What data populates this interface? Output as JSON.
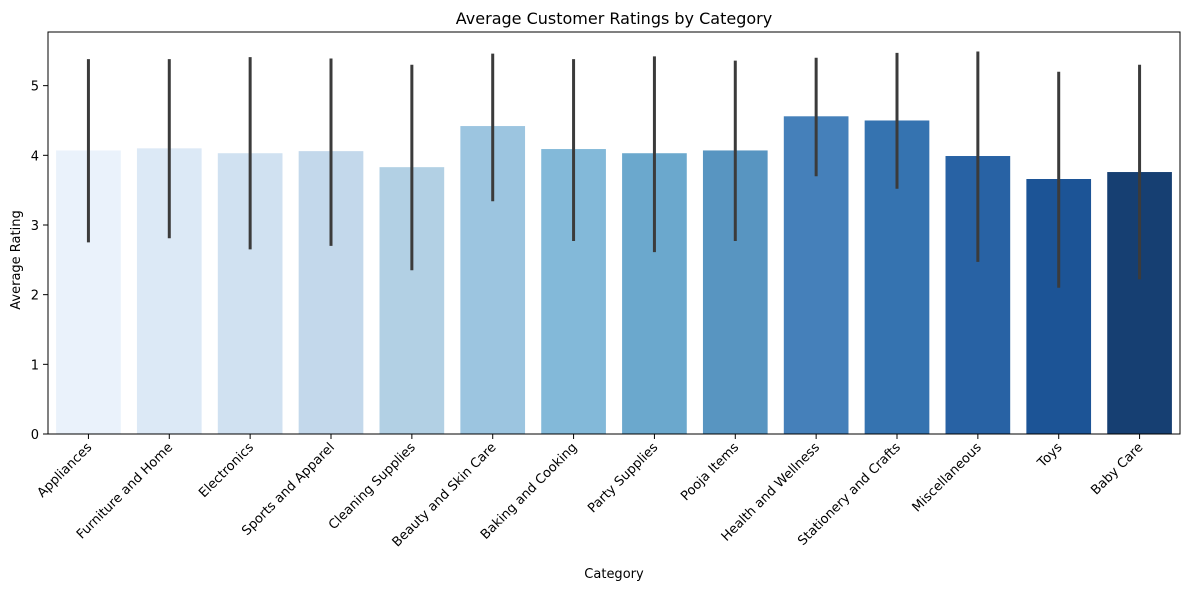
{
  "chart_data": {
    "type": "bar",
    "title": "Average Customer Ratings by Category",
    "xlabel": "Category",
    "ylabel": "Average Rating",
    "ylim": [
      0,
      5.77
    ],
    "yticks": [
      0,
      1,
      2,
      3,
      4,
      5
    ],
    "grid": false,
    "legend": "none",
    "categories": [
      "Appliances",
      "Furniture and Home",
      "Electronics",
      "Sports and Apparel",
      "Cleaning Supplies",
      "Beauty and Skin Care",
      "Baking and Cooking",
      "Party Supplies",
      "Pooja Items",
      "Health and Wellness",
      "Stationery and Crafts",
      "Miscellaneous",
      "Toys",
      "Baby Care"
    ],
    "values": [
      4.07,
      4.1,
      4.03,
      4.06,
      3.83,
      4.42,
      4.09,
      4.03,
      4.07,
      4.56,
      4.5,
      3.99,
      3.66,
      3.76
    ],
    "error_low": [
      2.75,
      2.81,
      2.65,
      2.7,
      2.35,
      3.34,
      2.77,
      2.61,
      2.77,
      3.7,
      3.52,
      2.47,
      2.1,
      2.22
    ],
    "error_high": [
      5.38,
      5.38,
      5.41,
      5.39,
      5.3,
      5.46,
      5.38,
      5.42,
      5.36,
      5.4,
      5.47,
      5.49,
      5.2,
      5.3
    ],
    "colors": [
      "#eaf2fb",
      "#dce9f6",
      "#d0e1f1",
      "#c3d8eb",
      "#b2d0e4",
      "#9cc5e0",
      "#83b9d9",
      "#6ba8cd",
      "#5895c1",
      "#4580ba",
      "#3573b0",
      "#2862a4",
      "#1c5496",
      "#163f72"
    ],
    "error_color": "#3b3b3b"
  }
}
